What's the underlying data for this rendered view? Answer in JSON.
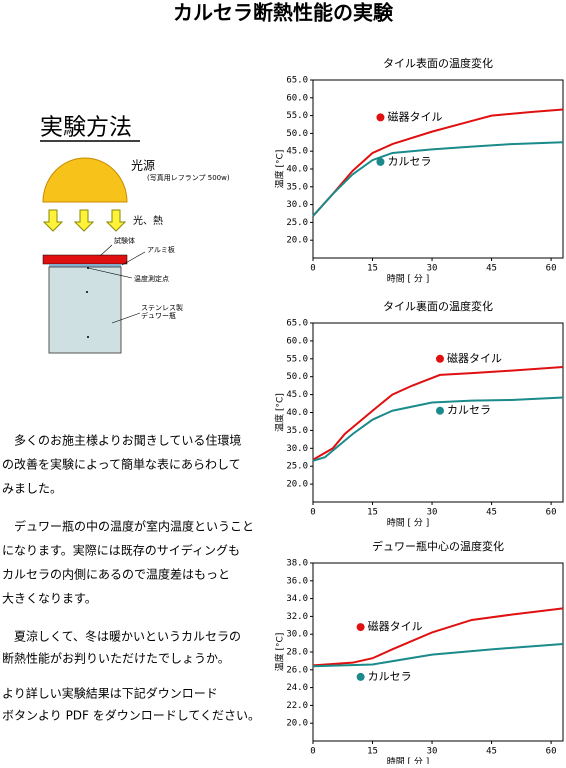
{
  "title": "カルセラ断熱性能の実験",
  "method": {
    "heading": "実験方法",
    "light": "光源",
    "lamp": "(写真用レフランプ 500w)",
    "heat": "光、熱",
    "specimen": "試験体",
    "plate": "アルミ板",
    "point": "温度測定点",
    "dewar1": "ステンレス製",
    "dewar2": "デュワー瓶"
  },
  "paragraphs": [
    [
      "　多くのお施主様よりお聞きしている住環境",
      "の改善を実験によって簡単な表にあらわして",
      "みました。"
    ],
    [
      "　デュワー瓶の中の温度が室内温度ということ",
      "になります。実際には既存のサイディングも",
      "カルセラの内側にあるので温度差はもっと",
      "大きくなります。"
    ],
    [
      "　夏涼しくて、冬は暖かいというカルセラの",
      "断熱性能がお判りいただけたでしょうか。"
    ],
    [
      "より詳しい実験結果は下記ダウンロード",
      "ボタンより PDF をダウンロードしてください。"
    ]
  ],
  "chart_data": [
    {
      "type": "line",
      "title": "タイル表面の温度変化",
      "x_label": "時間 [ 分 ]",
      "y_label": "温度 [°C]",
      "xlim": [
        0,
        63
      ],
      "xticks": [
        0,
        15,
        30,
        45,
        60
      ],
      "ylim": [
        15,
        65
      ],
      "yticks": [
        {
          "value": 20,
          "label": "20.0"
        },
        {
          "value": 25,
          "label": "25.0"
        },
        {
          "value": 30,
          "label": "30.0"
        },
        {
          "value": 35,
          "label": "35.0"
        },
        {
          "value": 40,
          "label": "40.0"
        },
        {
          "value": 45,
          "label": "45.0"
        },
        {
          "value": 50,
          "label": "50.0"
        },
        {
          "value": 55,
          "label": "55.0"
        },
        {
          "value": 60,
          "label": "60.0"
        },
        {
          "value": 65,
          "label": "65.0"
        }
      ],
      "series": [
        {
          "name": "磁器タイル",
          "color": "#e01010",
          "x": [
            0,
            5,
            10,
            15,
            20,
            30,
            40,
            45,
            55,
            63
          ],
          "values": [
            26.8,
            33,
            39.5,
            44.5,
            47,
            50.5,
            53.5,
            55,
            56,
            56.7
          ]
        },
        {
          "name": "カルセラ",
          "color": "#1a8a8a",
          "x": [
            0,
            5,
            10,
            15,
            20,
            30,
            40,
            50,
            63
          ],
          "values": [
            26.8,
            33,
            38.5,
            42.5,
            44.5,
            45.5,
            46.3,
            47,
            47.5
          ]
        }
      ]
    },
    {
      "type": "line",
      "title": "タイル裏面の温度変化",
      "x_label": "時間 [ 分 ]",
      "y_label": "温度 [°C]",
      "xlim": [
        0,
        63
      ],
      "xticks": [
        0,
        15,
        30,
        45,
        60
      ],
      "ylim": [
        15,
        65
      ],
      "yticks": [
        {
          "value": 20,
          "label": "20.0"
        },
        {
          "value": 25,
          "label": "25.0"
        },
        {
          "value": 30,
          "label": "30.0"
        },
        {
          "value": 35,
          "label": "35.0"
        },
        {
          "value": 40,
          "label": "40.0"
        },
        {
          "value": 45,
          "label": "45.0"
        },
        {
          "value": 50,
          "label": "50.0"
        },
        {
          "value": 55,
          "label": "55.0"
        },
        {
          "value": 60,
          "label": "60.0"
        },
        {
          "value": 65,
          "label": "65.0"
        }
      ],
      "series": [
        {
          "name": "磁器タイル",
          "color": "#e01010",
          "x": [
            0,
            5,
            8,
            15,
            20,
            25,
            32,
            40,
            50,
            63
          ],
          "values": [
            26.8,
            30,
            34,
            40.5,
            45,
            47.5,
            50.5,
            51,
            51.7,
            52.7
          ]
        },
        {
          "name": "カルセラ",
          "color": "#1a8a8a",
          "x": [
            0,
            3,
            10,
            15,
            20,
            30,
            40,
            50,
            63
          ],
          "values": [
            26.5,
            27.5,
            34,
            38,
            40.5,
            42.8,
            43.3,
            43.5,
            44.2
          ]
        }
      ]
    },
    {
      "type": "line",
      "title": "デュワー瓶中心の温度変化",
      "x_label": "時間 [ 分 ]",
      "y_label": "温度 [°C]",
      "xlim": [
        0,
        63
      ],
      "xticks": [
        0,
        15,
        30,
        45,
        60
      ],
      "ylim": [
        18,
        38
      ],
      "yticks": [
        {
          "value": 20,
          "label": "20.0"
        },
        {
          "value": 22,
          "label": "22.0"
        },
        {
          "value": 24,
          "label": "24.0"
        },
        {
          "value": 26,
          "label": "26.0"
        },
        {
          "value": 28,
          "label": "28.0"
        },
        {
          "value": 30,
          "label": "30.0"
        },
        {
          "value": 32,
          "label": "32.0"
        },
        {
          "value": 34,
          "label": "34.0"
        },
        {
          "value": 36,
          "label": "36.0"
        },
        {
          "value": 38,
          "label": "38.0"
        }
      ],
      "series": [
        {
          "name": "磁器タイル",
          "color": "#e01010",
          "x": [
            0,
            10,
            15,
            20,
            30,
            40,
            50,
            63
          ],
          "values": [
            26.5,
            26.8,
            27.3,
            28.3,
            30.2,
            31.6,
            32.2,
            32.9
          ]
        },
        {
          "name": "カルセラ",
          "color": "#1a8a8a",
          "x": [
            0,
            15,
            30,
            45,
            63
          ],
          "values": [
            26.4,
            26.6,
            27.7,
            28.3,
            28.9
          ]
        }
      ]
    }
  ]
}
